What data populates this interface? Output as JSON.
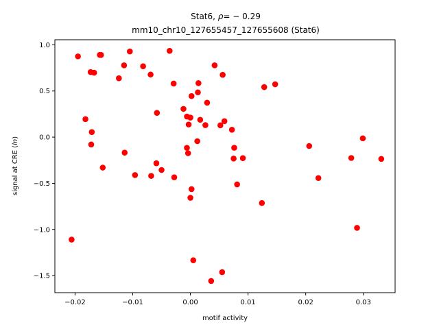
{
  "chart_data": {
    "type": "scatter",
    "title_line1_prefix": "Stat6, ",
    "title_line1_rho": "ρ",
    "title_line1_suffix": "= − 0.29",
    "title_line2": "mm10_chr10_127655457_127655608 (Stat6)",
    "xlabel": "motif activity",
    "ylabel_prefix": "signal at CRE (",
    "ylabel_italic": "ln",
    "ylabel_suffix": ")",
    "xlim": [
      -0.0235,
      0.0355
    ],
    "ylim": [
      -1.685,
      1.055
    ],
    "x_ticks": [
      {
        "value": -0.02,
        "label": "−0.02"
      },
      {
        "value": -0.01,
        "label": "−0.01"
      },
      {
        "value": 0.0,
        "label": "0.00"
      },
      {
        "value": 0.01,
        "label": "0.01"
      },
      {
        "value": 0.02,
        "label": "0.02"
      },
      {
        "value": 0.03,
        "label": "0.03"
      }
    ],
    "y_ticks": [
      {
        "value": 1.0,
        "label": "1.0"
      },
      {
        "value": 0.5,
        "label": "0.5"
      },
      {
        "value": 0.0,
        "label": "0.0"
      },
      {
        "value": -0.5,
        "label": "−0.5"
      },
      {
        "value": -1.0,
        "label": "−1.0"
      },
      {
        "value": -1.5,
        "label": "−1.5"
      }
    ],
    "grid": false,
    "marker_color": "#ff0000",
    "points": [
      {
        "x": -0.0195,
        "y": 0.875
      },
      {
        "x": -0.0157,
        "y": 0.891
      },
      {
        "x": -0.0155,
        "y": 0.89
      },
      {
        "x": -0.0105,
        "y": 0.928
      },
      {
        "x": -0.0036,
        "y": 0.935
      },
      {
        "x": -0.0115,
        "y": 0.778
      },
      {
        "x": -0.0082,
        "y": 0.768
      },
      {
        "x": 0.0042,
        "y": 0.778
      },
      {
        "x": -0.0173,
        "y": 0.705
      },
      {
        "x": -0.0167,
        "y": 0.698
      },
      {
        "x": -0.0069,
        "y": 0.678
      },
      {
        "x": 0.0056,
        "y": 0.675
      },
      {
        "x": -0.0124,
        "y": 0.638
      },
      {
        "x": -0.0029,
        "y": 0.58
      },
      {
        "x": 0.0014,
        "y": 0.585
      },
      {
        "x": 0.0147,
        "y": 0.573
      },
      {
        "x": 0.0128,
        "y": 0.542
      },
      {
        "x": 0.0013,
        "y": 0.485
      },
      {
        "x": 0.0002,
        "y": 0.445
      },
      {
        "x": 0.0029,
        "y": 0.373
      },
      {
        "x": -0.0012,
        "y": 0.306
      },
      {
        "x": -0.0058,
        "y": 0.263
      },
      {
        "x": -0.0006,
        "y": 0.223
      },
      {
        "x": 0.0,
        "y": 0.212
      },
      {
        "x": -0.0182,
        "y": 0.195
      },
      {
        "x": 0.0017,
        "y": 0.188
      },
      {
        "x": 0.0059,
        "y": 0.173
      },
      {
        "x": -0.0003,
        "y": 0.137
      },
      {
        "x": 0.0026,
        "y": 0.13
      },
      {
        "x": 0.0052,
        "y": 0.128
      },
      {
        "x": 0.0072,
        "y": 0.08
      },
      {
        "x": -0.0171,
        "y": 0.055
      },
      {
        "x": 0.0299,
        "y": -0.013
      },
      {
        "x": 0.0012,
        "y": -0.044
      },
      {
        "x": -0.0172,
        "y": -0.08
      },
      {
        "x": 0.0206,
        "y": -0.096
      },
      {
        "x": -0.0006,
        "y": -0.116
      },
      {
        "x": 0.0076,
        "y": -0.115
      },
      {
        "x": -0.0114,
        "y": -0.168
      },
      {
        "x": -0.0004,
        "y": -0.174
      },
      {
        "x": 0.0075,
        "y": -0.232
      },
      {
        "x": 0.0091,
        "y": -0.227
      },
      {
        "x": 0.0279,
        "y": -0.226
      },
      {
        "x": 0.0331,
        "y": -0.236
      },
      {
        "x": -0.0059,
        "y": -0.283
      },
      {
        "x": -0.0152,
        "y": -0.33
      },
      {
        "x": -0.005,
        "y": -0.356
      },
      {
        "x": -0.0096,
        "y": -0.411
      },
      {
        "x": -0.0068,
        "y": -0.42
      },
      {
        "x": -0.0028,
        "y": -0.435
      },
      {
        "x": 0.0222,
        "y": -0.443
      },
      {
        "x": 0.0081,
        "y": -0.512
      },
      {
        "x": 0.0002,
        "y": -0.563
      },
      {
        "x": 0.0,
        "y": -0.657
      },
      {
        "x": 0.0124,
        "y": -0.714
      },
      {
        "x": 0.0289,
        "y": -0.983
      },
      {
        "x": -0.0206,
        "y": -1.11
      },
      {
        "x": 0.0005,
        "y": -1.334
      },
      {
        "x": 0.0055,
        "y": -1.463
      },
      {
        "x": 0.0036,
        "y": -1.558
      }
    ]
  }
}
